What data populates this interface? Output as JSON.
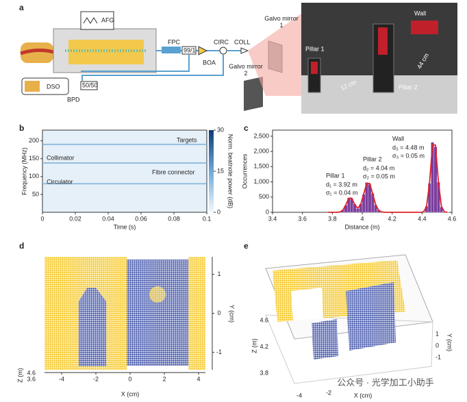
{
  "panel_labels": [
    "a",
    "b",
    "c",
    "d",
    "e"
  ],
  "diagram": {
    "afg": "AFG",
    "fpc": "FPC",
    "ratio": "99/1",
    "circ": "CIRC",
    "coll": "COLL",
    "galvo1": "Galvo mirror 1",
    "galvo2": "Galvo mirror 2",
    "boa": "BOA",
    "dso": "DSO",
    "coupler": "50/50",
    "bpd": "BPD",
    "wall": "Wall",
    "pillar1": "Pillar 1",
    "pillar2": "Pillar 2",
    "dist1": "12 cm",
    "dist2": "44 cm"
  },
  "chart_data": [
    {
      "type": "spectrogram",
      "xlabel": "Time (s)",
      "ylabel": "Frequency (MHz)",
      "xlim": [
        0,
        0.1
      ],
      "xticks": [
        0,
        0.02,
        0.04,
        0.06,
        0.08,
        0.1
      ],
      "ylim": [
        0,
        230
      ],
      "yticks": [
        50,
        100,
        150,
        200
      ],
      "bands": [
        190,
        138,
        80
      ],
      "annotations": [
        "Targets",
        "Collimator",
        "Fibre connector",
        "Circulator"
      ],
      "colorbar": {
        "label": "Norm. beatnote power (dB)",
        "lim": [
          0,
          30
        ],
        "ticks": [
          0,
          15,
          30
        ]
      }
    },
    {
      "type": "histogram",
      "xlabel": "Distance (m)",
      "ylabel": "Occurrences",
      "color": "#7b3f9e",
      "fit_color": "#e0202a",
      "xlim": [
        3.4,
        4.6
      ],
      "xticks": [
        3.4,
        3.6,
        3.8,
        4,
        4.2,
        4.4,
        4.6
      ],
      "ylim": [
        0,
        2700
      ],
      "yticks": [
        0,
        500,
        {
          "value": 1000,
          "label": "1,000"
        },
        {
          "value": 1500,
          "label": "1,500"
        },
        {
          "value": 2000,
          "label": "2,000"
        },
        {
          "value": 2500,
          "label": "2,500"
        }
      ],
      "bins": [
        3.76,
        3.78,
        3.8,
        3.82,
        3.84,
        3.86,
        3.88,
        3.9,
        3.92,
        3.94,
        3.96,
        3.98,
        4,
        4.02,
        4.04,
        4.06,
        4.08,
        4.1,
        4.12,
        4.14,
        4.16,
        4.18,
        4.2,
        4.22,
        4.24,
        4.26,
        4.28,
        4.3,
        4.32,
        4.34,
        4.36,
        4.38,
        4.4,
        4.42,
        4.44,
        4.46,
        4.48,
        4.5,
        4.52,
        4.54,
        4.56,
        4.58
      ],
      "counts": [
        0,
        5,
        8,
        12,
        25,
        80,
        230,
        480,
        450,
        270,
        120,
        280,
        590,
        980,
        920,
        620,
        240,
        70,
        15,
        5,
        3,
        2,
        2,
        1,
        1,
        1,
        1,
        1,
        2,
        2,
        3,
        5,
        20,
        200,
        950,
        2300,
        2150,
        990,
        170,
        20,
        5
      ],
      "fit": {
        "x": [
          3.77,
          3.79,
          3.81,
          3.83,
          3.85,
          3.87,
          3.89,
          3.91,
          3.93,
          3.95,
          3.97,
          3.99,
          4.01,
          4.03,
          4.05,
          4.07,
          4.09,
          4.11,
          4.13,
          4.15,
          4.17,
          4.19,
          4.21,
          4.23,
          4.25,
          4.27,
          4.29,
          4.31,
          4.33,
          4.35,
          4.37,
          4.39,
          4.41,
          4.43,
          4.45,
          4.47,
          4.49,
          4.51,
          4.53,
          4.55,
          4.57
        ],
        "values": [
          0,
          0,
          0,
          1,
          10,
          68,
          243,
          462,
          463,
          254,
          134,
          260,
          607,
          946,
          946,
          607,
          250,
          66,
          11,
          1,
          0,
          0,
          0,
          0,
          0,
          0,
          0,
          0,
          0,
          0,
          0,
          0,
          15,
          186,
          968,
          2210,
          2210,
          968,
          186,
          15,
          0
        ]
      },
      "annotations": [
        "Pillar 1",
        "d₁ = 3.92 m",
        "σ₁ = 0.04 m",
        "Pillar 2",
        "d₂ = 4.04 m",
        "σ₂ = 0.05 m",
        "Wall",
        "d₃ = 4.48 m",
        "σ₃ = 0.05 m"
      ]
    },
    {
      "type": "point-cloud",
      "xlabel": "X (cm)",
      "ylabel": "Y (cm)",
      "zlabel": "Z (m)",
      "xlim": [
        -5,
        4.4
      ],
      "xticks": [
        -4,
        -2,
        0,
        2,
        4
      ],
      "ylim": [
        -1.45,
        1.45
      ],
      "yticks": [
        -1,
        0,
        1
      ],
      "zticks": [
        4.6,
        3.6
      ],
      "colors": [
        "#f5c518",
        "#3a4ea6"
      ]
    },
    {
      "type": "point-cloud-3d",
      "xlabel": "X (cm)",
      "ylabel": "Y (cm)",
      "zlabel": "Z (m)",
      "xticks": [
        -4,
        -2
      ],
      "yticks": [
        1,
        0,
        -1
      ],
      "zticks": [
        4.6,
        4.2,
        3.8
      ],
      "colors": [
        "#f5c518",
        "#3a4ea6"
      ]
    }
  ],
  "watermark": "公众号 · 光学加工小助手"
}
